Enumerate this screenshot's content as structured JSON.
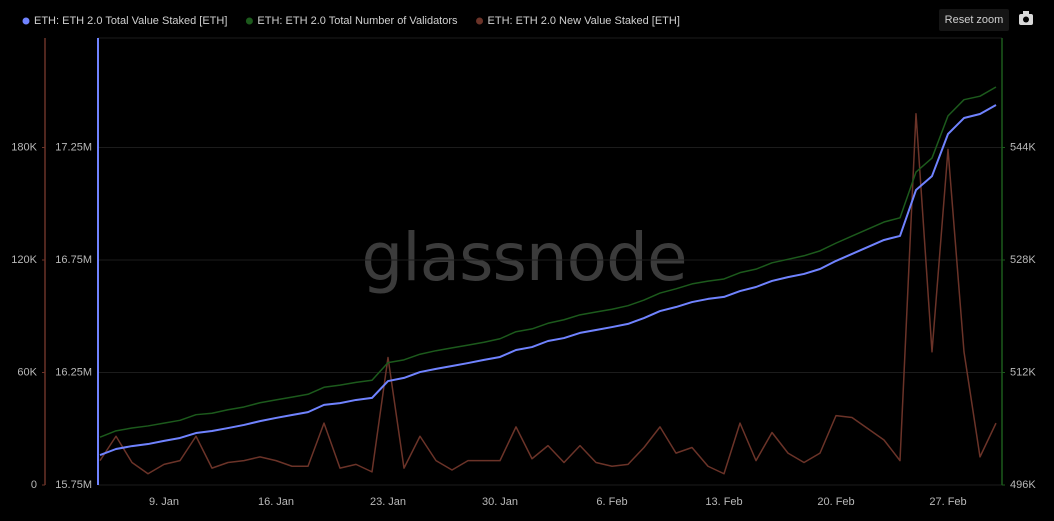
{
  "chart_data": {
    "type": "line",
    "watermark": "glassnode",
    "reset_button": "Reset zoom",
    "categories": [
      null,
      null,
      null,
      null,
      "9. Jan",
      null,
      null,
      null,
      null,
      null,
      null,
      "16. Jan",
      null,
      null,
      null,
      null,
      null,
      null,
      "23. Jan",
      null,
      null,
      null,
      null,
      null,
      null,
      "30. Jan",
      null,
      null,
      null,
      null,
      null,
      null,
      "6. Feb",
      null,
      null,
      null,
      null,
      null,
      null,
      "13. Feb",
      null,
      null,
      null,
      null,
      null,
      null,
      "20. Feb",
      null,
      null,
      null,
      null,
      null,
      null,
      "27. Feb",
      null,
      null,
      null
    ],
    "ylim": [
      15750000,
      17750000
    ],
    "yticks": [
      {
        "value": 15750000,
        "label": "15.75M"
      },
      {
        "value": 16250000,
        "label": "16.25M"
      },
      {
        "value": 16750000,
        "label": "16.75M"
      },
      {
        "value": 17250000,
        "label": "17.25M"
      }
    ],
    "y2lim": [
      496000,
      560000
    ],
    "y2ticks": [
      {
        "value": 496000,
        "label": "496K"
      },
      {
        "value": 512000,
        "label": "512K"
      },
      {
        "value": 528000,
        "label": "528K"
      },
      {
        "value": 544000,
        "label": "544K"
      }
    ],
    "y3lim": [
      0,
      240000
    ],
    "y3ticks": [
      0,
      {
        "value": 60000,
        "label": "60K"
      },
      {
        "value": 120000,
        "label": "120K"
      },
      {
        "value": 180000,
        "label": "180K"
      }
    ],
    "grid": true,
    "series": [
      {
        "name": "ETH: ETH 2.0 Total Value Staked [ETH]",
        "color": "#7083ff",
        "axis": "y",
        "values": [
          15883000,
          15910000,
          15923000,
          15932000,
          15946000,
          15959000,
          15981000,
          15990000,
          16003000,
          16017000,
          16034000,
          16048000,
          16061000,
          16074000,
          16106000,
          16114000,
          16128000,
          16137000,
          16212000,
          16226000,
          16252000,
          16266000,
          16279000,
          16292000,
          16306000,
          16319000,
          16350000,
          16363000,
          16390000,
          16403000,
          16426000,
          16439000,
          16452000,
          16466000,
          16492000,
          16523000,
          16541000,
          16563000,
          16577000,
          16586000,
          16612000,
          16630000,
          16657000,
          16674000,
          16688000,
          16710000,
          16746000,
          16777000,
          16808000,
          16839000,
          16857000,
          17061000,
          17123000,
          17310000,
          17381000,
          17399000,
          17439000
        ]
      },
      {
        "name": "ETH: ETH 2.0 Total Number of Validators",
        "color": "#1c5a1c",
        "axis": "y2",
        "values": [
          502800,
          503700,
          504100,
          504400,
          504800,
          505200,
          506000,
          506200,
          506700,
          507100,
          507700,
          508100,
          508500,
          508900,
          509900,
          510200,
          510600,
          510900,
          513400,
          513800,
          514600,
          515100,
          515500,
          515900,
          516300,
          516800,
          517800,
          518200,
          519000,
          519500,
          520200,
          520600,
          521000,
          521500,
          522300,
          523300,
          523900,
          524600,
          525000,
          525300,
          526200,
          526700,
          527600,
          528100,
          528600,
          529300,
          530400,
          531400,
          532400,
          533400,
          534000,
          540500,
          542500,
          548500,
          550800,
          551300,
          552600
        ]
      },
      {
        "name": "ETH: ETH 2.0 New Value Staked [ETH]",
        "color": "#6b3328",
        "axis": "y3",
        "values": [
          13000,
          26000,
          12000,
          6000,
          11000,
          13000,
          26000,
          9000,
          12000,
          13000,
          15000,
          13000,
          10000,
          10000,
          33000,
          9000,
          11000,
          7000,
          68000,
          9000,
          26000,
          13000,
          8000,
          13000,
          13000,
          13000,
          31000,
          14000,
          21000,
          12000,
          21000,
          12000,
          10000,
          11000,
          20000,
          31000,
          17000,
          20000,
          10000,
          6000,
          33000,
          13000,
          28000,
          17000,
          12000,
          17000,
          37000,
          36000,
          30000,
          24000,
          13000,
          198000,
          71000,
          179000,
          71000,
          15000,
          33000
        ]
      }
    ]
  }
}
